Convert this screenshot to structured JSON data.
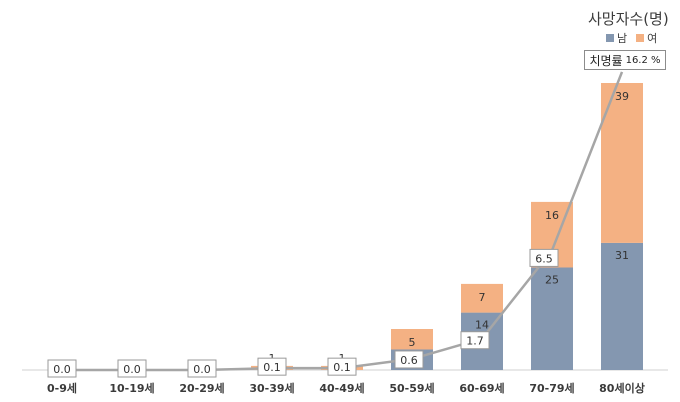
{
  "legend": {
    "title": "사망자수(명)",
    "items": [
      {
        "name": "남",
        "color": "#8497b0"
      },
      {
        "name": "여",
        "color": "#f4b183"
      }
    ]
  },
  "fatality_label": {
    "text": "치명률",
    "value": "16.2 %"
  },
  "chart_data": {
    "type": "bar",
    "stacked": true,
    "categories": [
      "0-9세",
      "10-19세",
      "20-29세",
      "30-39세",
      "40-49세",
      "50-59세",
      "60-69세",
      "70-79세",
      "80세이상"
    ],
    "series": [
      {
        "name": "남",
        "color": "#8497b0",
        "values": [
          0,
          0,
          0,
          0,
          0,
          5,
          14,
          25,
          31
        ],
        "labels": [
          "",
          "",
          "",
          "",
          "",
          "5",
          "14",
          "25",
          "31"
        ]
      },
      {
        "name": "여",
        "color": "#f4b183",
        "values": [
          0,
          0,
          0,
          1,
          1,
          5,
          7,
          16,
          39
        ],
        "labels": [
          "",
          "",
          "",
          "1",
          "1",
          "5",
          "7",
          "16",
          "39"
        ]
      }
    ],
    "line": {
      "name": "치명률",
      "color": "#a6a6a6",
      "values": [
        0.0,
        0.0,
        0.0,
        0.1,
        0.1,
        0.6,
        1.7,
        6.5,
        16.2
      ],
      "labels": [
        "0.0",
        "0.0",
        "0.0",
        "0.1",
        "0.1",
        "0.6",
        "1.7",
        "6.5",
        ""
      ]
    },
    "ylim": [
      0,
      70
    ],
    "line_ylim": [
      0,
      17.5
    ],
    "xlabel": "",
    "ylabel": ""
  }
}
